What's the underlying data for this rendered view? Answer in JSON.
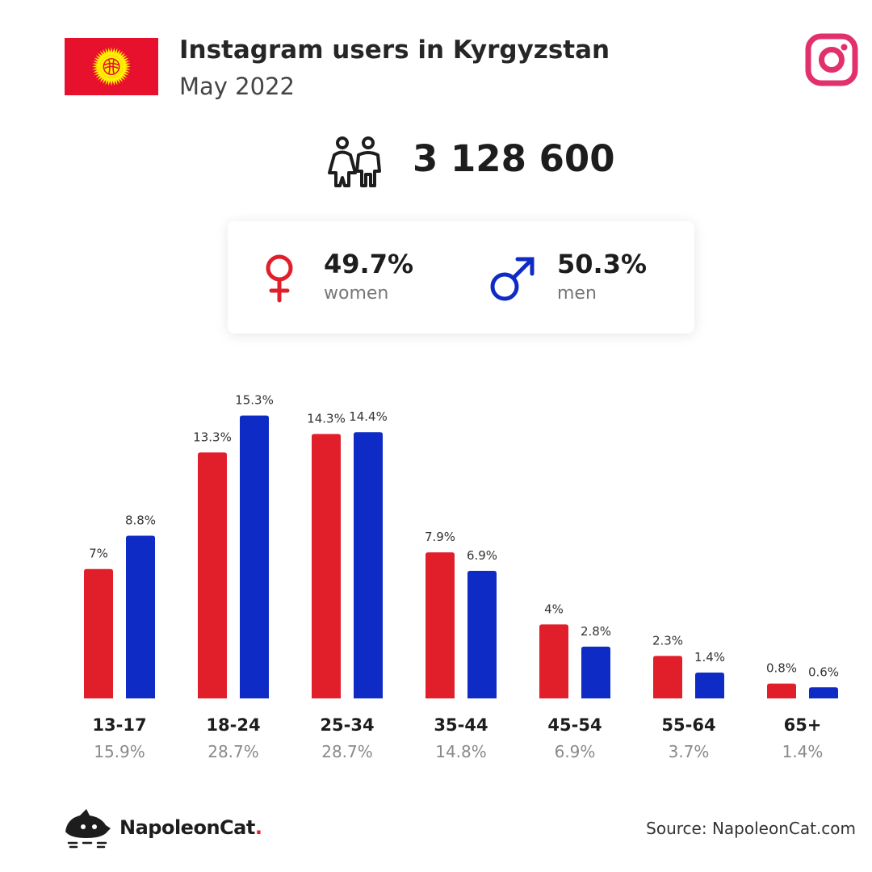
{
  "header": {
    "title": "Instagram users in Kyrgyzstan",
    "subtitle": "May 2022"
  },
  "colors": {
    "women": "#e11f2a",
    "men": "#0f2bc6",
    "instagram": "#e1306c",
    "flag_red": "#e8112d",
    "flag_sun": "#ffef00"
  },
  "icons": {
    "flag": "kyrgyzstan-flag-icon",
    "instagram": "instagram-icon",
    "users": "people-icon",
    "female": "female-sign-icon",
    "male": "male-sign-icon",
    "brand": "napoleoncat-logo-icon"
  },
  "summary": {
    "total_users": "3 128 600",
    "women": {
      "pct": "49.7%",
      "label": "women"
    },
    "men": {
      "pct": "50.3%",
      "label": "men"
    }
  },
  "chart_data": {
    "type": "bar",
    "categories": [
      "13-17",
      "18-24",
      "25-34",
      "35-44",
      "45-54",
      "55-64",
      "65+"
    ],
    "series": [
      {
        "values": [
          7,
          13.3,
          14.3,
          7.9,
          4,
          2.3,
          0.8
        ],
        "labels": [
          "7%",
          "13.3%",
          "14.3%",
          "7.9%",
          "4%",
          "2.3%",
          "0.8%"
        ]
      },
      {
        "values": [
          8.8,
          15.3,
          14.4,
          6.9,
          2.8,
          1.4,
          0.6
        ],
        "labels": [
          "8.8%",
          "15.3%",
          "14.4%",
          "6.9%",
          "2.8%",
          "1.4%",
          "0.6%"
        ]
      }
    ],
    "category_totals": [
      "15.9%",
      "28.7%",
      "28.7%",
      "14.8%",
      "6.9%",
      "3.7%",
      "1.4%"
    ],
    "ylim": [
      0,
      16
    ],
    "grid": false
  },
  "footer": {
    "brand_name": "NapoleonCat",
    "brand_dot": ".",
    "source": "Source: NapoleonCat.com"
  }
}
